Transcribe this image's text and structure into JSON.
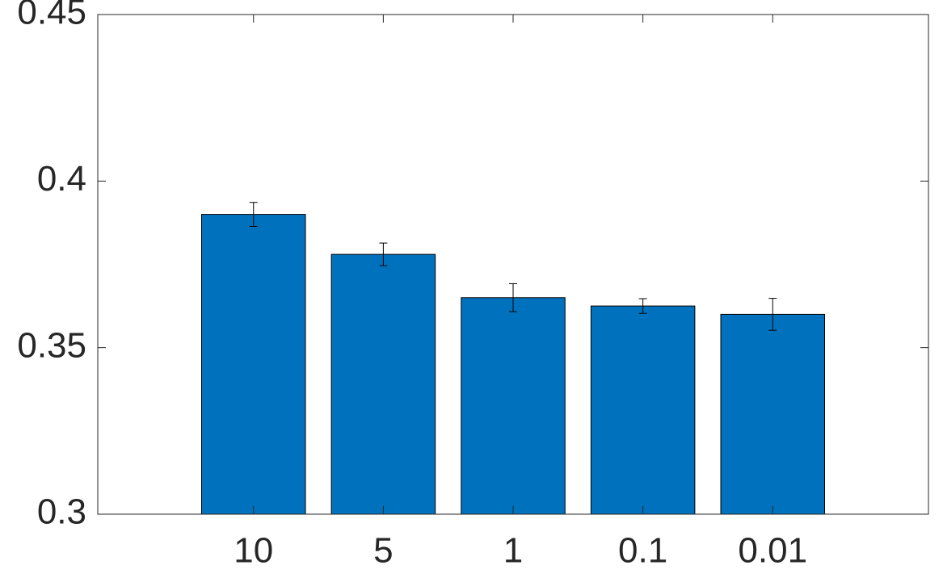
{
  "chart_data": {
    "type": "bar",
    "categories": [
      "10",
      "5",
      "1",
      "0.1",
      "0.01"
    ],
    "values": [
      0.39,
      0.378,
      0.365,
      0.3625,
      0.36
    ],
    "errors": [
      0.0036,
      0.0034,
      0.0042,
      0.0022,
      0.0048
    ],
    "color": "#0072bd",
    "ylim": [
      0.3,
      0.45
    ],
    "yticks": [
      0.3,
      0.35,
      0.4,
      0.45
    ],
    "grid": false
  }
}
